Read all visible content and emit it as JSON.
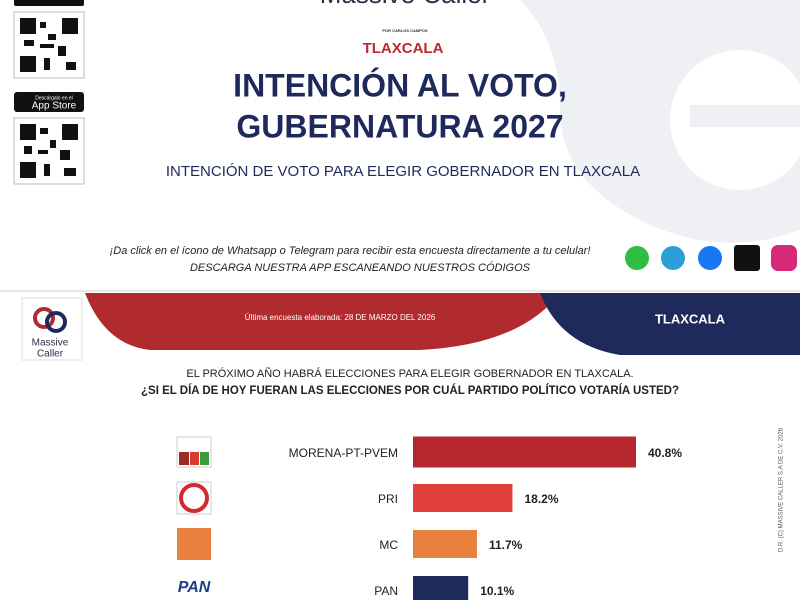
{
  "header": {
    "brand": "Massive Caller",
    "brand_sub": "POR CARLOS CAMPOS",
    "state": "TLAXCALA",
    "title_line1": "INTENCIÓN AL VOTO,",
    "title_line2": "GUBERNATURA 2027",
    "subtitle": "INTENCIÓN DE VOTO PARA ELEGIR GOBERNADOR EN TLAXCALA",
    "store_small": "Descárgalo en el",
    "store": "App Store"
  },
  "cta": {
    "line1": "¡Da click en el ícono de Whatsapp o Telegram para recibir esta encuesta directamente a tu celular!",
    "line2": "DESCARGA NUESTRA APP ESCANEANDO NUESTROS CÓDIGOS"
  },
  "banner": {
    "date": "Última encuesta elaborada: 28 DE MARZO DEL 2026",
    "state": "TLAXCALA",
    "logo_line1": "Massive",
    "logo_line2": "Caller"
  },
  "side_note": "D.R. (C) MASSIVE CALLER S.A DE C.V. 2026",
  "chart_data": {
    "type": "bar",
    "orientation": "horizontal",
    "title": "EL PRÓXIMO AÑO HABRÁ ELECCIONES PARA ELEGIR GOBERNADOR EN TLAXCALA.",
    "subtitle": "¿SI EL DÍA DE HOY FUERAN LAS ELECCIONES POR CUÁL PARTIDO POLÍTICO VOTARÍA USTED?",
    "categories": [
      "MORENA-PT-PVEM",
      "PRI",
      "MC",
      "PAN"
    ],
    "values": [
      40.8,
      18.2,
      11.7,
      10.1
    ],
    "value_labels": [
      "40.8%",
      "18.2%",
      "11.7%",
      "10.1%"
    ],
    "colors": [
      "#b5272d",
      "#e2413b",
      "#e9803d",
      "#1f2a5c"
    ]
  }
}
